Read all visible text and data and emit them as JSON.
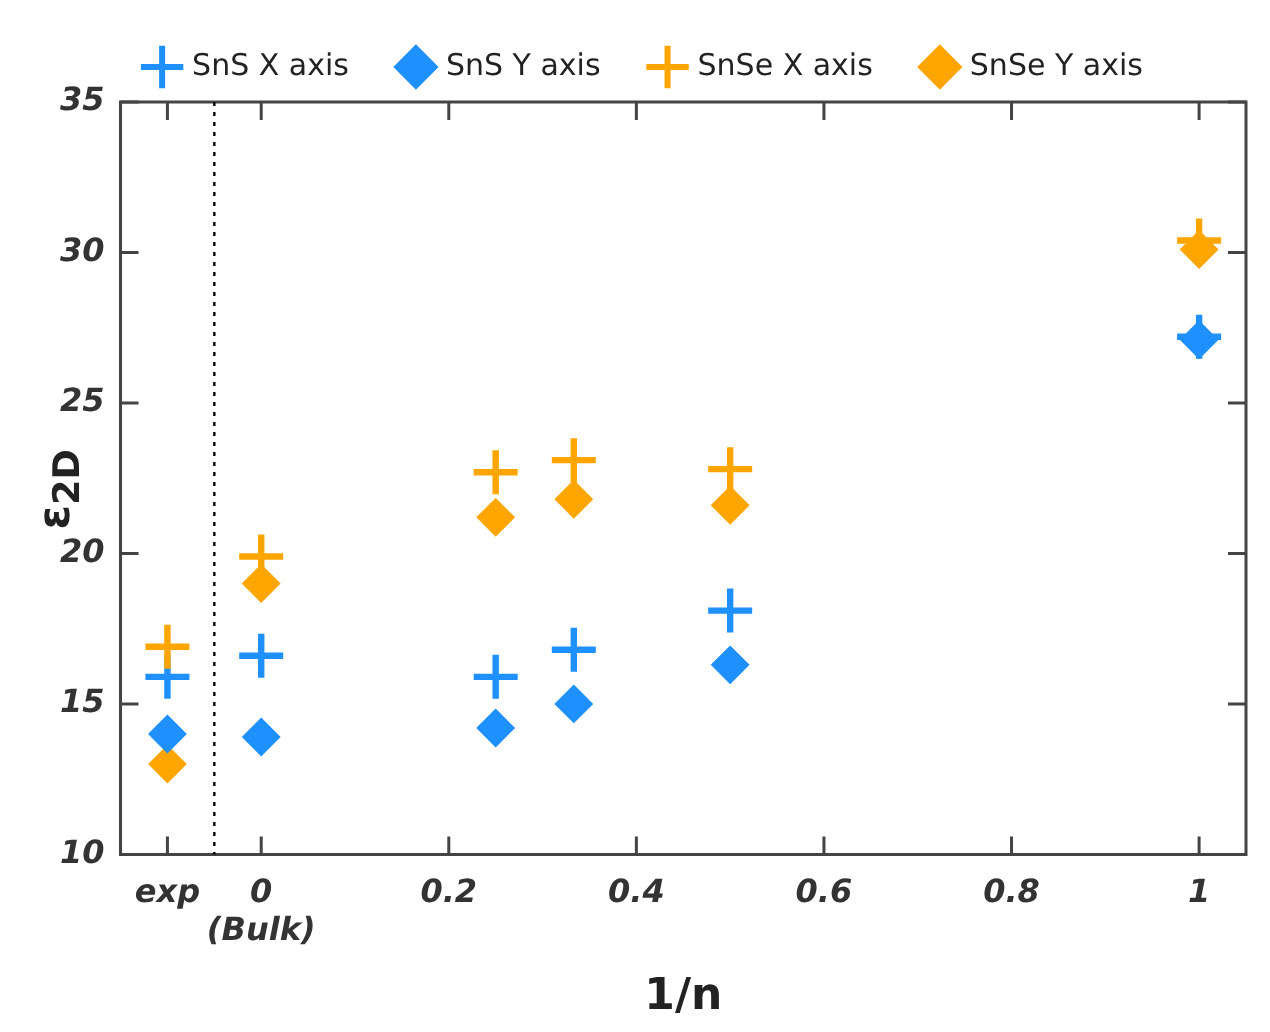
{
  "chart_data": {
    "type": "scatter",
    "xlabel": "1/n",
    "ylabel": "ε$_{2D}$",
    "x": [
      -0.1,
      0,
      0.25,
      0.3333,
      0.5,
      1
    ],
    "series": [
      {
        "name": "SnS X axis",
        "color": "#1e90ff",
        "marker": "cross",
        "values": [
          15.9,
          16.6,
          15.9,
          16.8,
          18.1,
          27.2
        ]
      },
      {
        "name": "SnS Y axis",
        "color": "#1e90ff",
        "marker": "diamond",
        "values": [
          14.0,
          13.9,
          14.2,
          15.0,
          16.3,
          27.1
        ]
      },
      {
        "name": "SnSe X axis",
        "color": "#ffa500",
        "marker": "cross",
        "values": [
          16.9,
          19.9,
          22.7,
          23.1,
          22.8,
          30.4
        ]
      },
      {
        "name": "SnSe Y axis",
        "color": "#ffa500",
        "marker": "diamond",
        "values": [
          13.0,
          19.0,
          21.2,
          21.8,
          21.6,
          30.1
        ]
      }
    ],
    "xlim": [
      -0.15,
      1.05
    ],
    "xticks": [
      {
        "value": -0.1,
        "label": "exp"
      },
      {
        "value": 0,
        "label": "0\n(Bulk)"
      },
      0.2,
      0.4,
      0.6,
      0.8,
      1
    ],
    "ylim": [
      10,
      35
    ],
    "yticks": [
      10,
      15,
      20,
      25,
      30,
      35
    ],
    "ref_lines": [
      {
        "axis": "x",
        "value": -0.05,
        "color": "#000000",
        "line_style": "dotted"
      }
    ],
    "grid": false,
    "legend": "top"
  }
}
